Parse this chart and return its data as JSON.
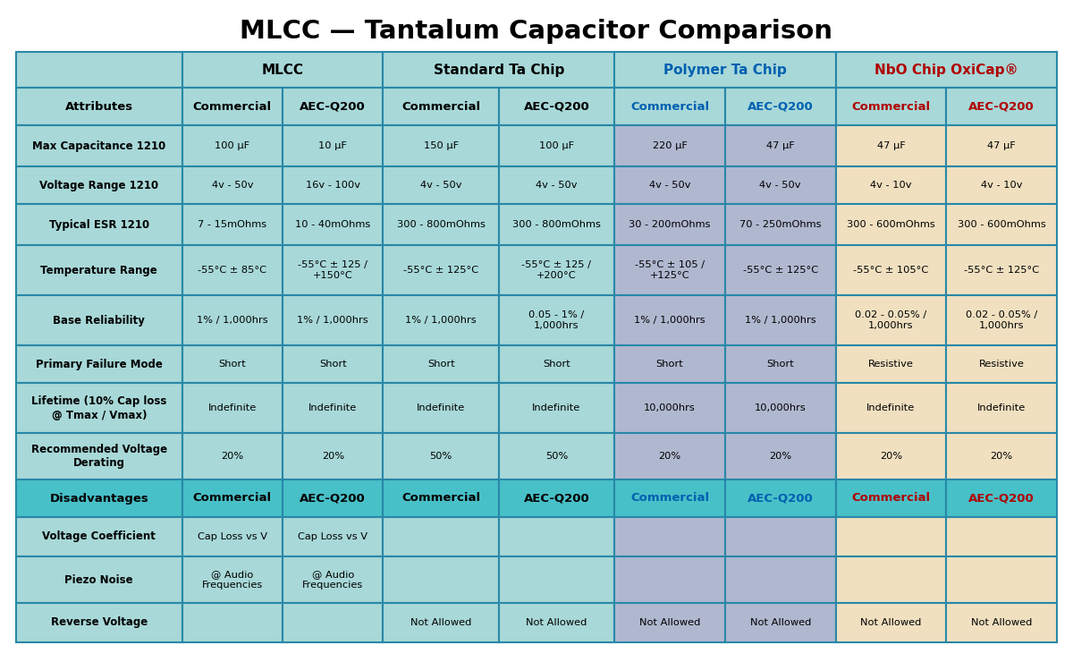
{
  "title": "MLCC — Tantalum Capacitor Comparison",
  "title_fontsize": 21,
  "col_widths_raw": [
    1.65,
    1.0,
    1.0,
    1.15,
    1.15,
    1.1,
    1.1,
    1.1,
    1.1
  ],
  "col_colors": [
    "#a8d8d8",
    "#a8d8d8",
    "#a8d8d8",
    "#a8d8d8",
    "#a8d8d8",
    "#b0b8d0",
    "#b0b8d0",
    "#f0e0c0",
    "#f0e0c0"
  ],
  "header_group_color": "#a8d8d8",
  "disadv_header_color": "#48c0c8",
  "border_color": "#2888a8",
  "attr_col_color": "#a8d8d8",
  "group_header": [
    {
      "text": "",
      "span": 1,
      "color": "#000000"
    },
    {
      "text": "MLCC",
      "span": 2,
      "color": "#000000"
    },
    {
      "text": "Standard Ta Chip",
      "span": 2,
      "color": "#000000"
    },
    {
      "text": "Polymer Ta Chip",
      "span": 2,
      "color": "#0060b0"
    },
    {
      "text": "NbO Chip OxiCap®",
      "span": 2,
      "color": "#b00000"
    }
  ],
  "subheader_cells": [
    {
      "text": "Attributes",
      "color": "#000000"
    },
    {
      "text": "Commercial",
      "color": "#000000"
    },
    {
      "text": "AEC-Q200",
      "color": "#000000"
    },
    {
      "text": "Commercial",
      "color": "#000000"
    },
    {
      "text": "AEC-Q200",
      "color": "#000000"
    },
    {
      "text": "Commercial",
      "color": "#0060b0"
    },
    {
      "text": "AEC-Q200",
      "color": "#0060b0"
    },
    {
      "text": "Commercial",
      "color": "#b00000"
    },
    {
      "text": "AEC-Q200",
      "color": "#b00000"
    }
  ],
  "attr_rows": [
    {
      "attr": "Max Capacitance 1210",
      "values": [
        "100 µF",
        "10 µF",
        "150 µF",
        "100 µF",
        "220 µF",
        "47 µF",
        "47 µF",
        "47 µF"
      ]
    },
    {
      "attr": "Voltage Range 1210",
      "values": [
        "4v - 50v",
        "16v - 100v",
        "4v - 50v",
        "4v - 50v",
        "4v - 50v",
        "4v - 50v",
        "4v - 10v",
        "4v - 10v"
      ]
    },
    {
      "attr": "Typical ESR 1210",
      "values": [
        "7 - 15mOhms",
        "10 - 40mOhms",
        "300 - 800mOhms",
        "300 - 800mOhms",
        "30 - 200mOhms",
        "70 - 250mOhms",
        "300 - 600mOhms",
        "300 - 600mOhms"
      ]
    },
    {
      "attr": "Temperature Range",
      "values": [
        "-55°C ± 85°C",
        "-55°C ± 125 /\n+150°C",
        "-55°C ± 125°C",
        "-55°C ± 125 /\n+200°C",
        "-55°C ± 105 /\n+125°C",
        "-55°C ± 125°C",
        "-55°C ± 105°C",
        "-55°C ± 125°C"
      ]
    },
    {
      "attr": "Base Reliability",
      "values": [
        "1% / 1,000hrs",
        "1% / 1,000hrs",
        "1% / 1,000hrs",
        "0.05 - 1% /\n1,000hrs",
        "1% / 1,000hrs",
        "1% / 1,000hrs",
        "0.02 - 0.05% /\n1,000hrs",
        "0.02 - 0.05% /\n1,000hrs"
      ]
    },
    {
      "attr": "Primary Failure Mode",
      "values": [
        "Short",
        "Short",
        "Short",
        "Short",
        "Short",
        "Short",
        "Resistive",
        "Resistive"
      ]
    },
    {
      "attr": "Lifetime (10% Cap loss\n@ Tmax / Vmax)",
      "values": [
        "Indefinite",
        "Indefinite",
        "Indefinite",
        "Indefinite",
        "10,000hrs",
        "10,000hrs",
        "Indefinite",
        "Indefinite"
      ]
    },
    {
      "attr": "Recommended Voltage\nDerating",
      "values": [
        "20%",
        "20%",
        "50%",
        "50%",
        "20%",
        "20%",
        "20%",
        "20%"
      ]
    }
  ],
  "disadv_subheader_cells": [
    {
      "text": "Disadvantages",
      "color": "#000000"
    },
    {
      "text": "Commercial",
      "color": "#000000"
    },
    {
      "text": "AEC-Q200",
      "color": "#000000"
    },
    {
      "text": "Commercial",
      "color": "#000000"
    },
    {
      "text": "AEC-Q200",
      "color": "#000000"
    },
    {
      "text": "Commercial",
      "color": "#0060b0"
    },
    {
      "text": "AEC-Q200",
      "color": "#0060b0"
    },
    {
      "text": "Commercial",
      "color": "#b00000"
    },
    {
      "text": "AEC-Q200",
      "color": "#b00000"
    }
  ],
  "disadv_rows": [
    {
      "attr": "Voltage Coefficient",
      "values": [
        "Cap Loss vs V",
        "Cap Loss vs V",
        "",
        "",
        "",
        "",
        "",
        ""
      ]
    },
    {
      "attr": "Piezo Noise",
      "values": [
        "@ Audio\nFrequencies",
        "@ Audio\nFrequencies",
        "",
        "",
        "",
        "",
        "",
        ""
      ]
    },
    {
      "attr": "Reverse Voltage",
      "values": [
        "",
        "",
        "Not Allowed",
        "Not Allowed",
        "Not Allowed",
        "Not Allowed",
        "Not Allowed",
        "Not Allowed"
      ]
    }
  ]
}
